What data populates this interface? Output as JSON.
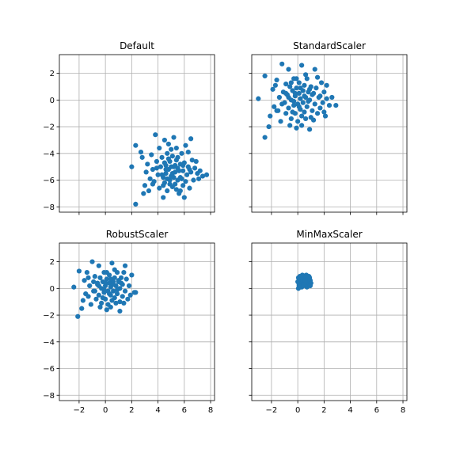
{
  "chart_data": [
    {
      "type": "scatter",
      "title": "Default",
      "xlabel": "",
      "ylabel": "",
      "xlim": [
        -3.5,
        8.3
      ],
      "ylim": [
        -8.4,
        3.4
      ],
      "xticks": [
        -2,
        0,
        2,
        4,
        6,
        8
      ],
      "yticks": [
        -8,
        -6,
        -4,
        -2,
        0,
        2
      ],
      "show_xticklabels": false,
      "show_yticklabels": true,
      "grid": true,
      "marker_color": "#1f77b4",
      "points": [
        [
          2.3,
          -7.8
        ],
        [
          2.0,
          -5.0
        ],
        [
          2.3,
          -3.4
        ],
        [
          2.7,
          -3.9
        ],
        [
          2.8,
          -4.3
        ],
        [
          2.9,
          -7.0
        ],
        [
          3.0,
          -6.4
        ],
        [
          3.1,
          -5.4
        ],
        [
          3.2,
          -4.8
        ],
        [
          3.3,
          -6.8
        ],
        [
          3.4,
          -5.9
        ],
        [
          3.5,
          -4.1
        ],
        [
          3.6,
          -5.2
        ],
        [
          3.7,
          -6.1
        ],
        [
          3.8,
          -2.6
        ],
        [
          3.9,
          -4.6
        ],
        [
          4.0,
          -5.6
        ],
        [
          4.1,
          -6.6
        ],
        [
          4.1,
          -3.6
        ],
        [
          4.2,
          -5.0
        ],
        [
          4.3,
          -4.3
        ],
        [
          4.4,
          -7.3
        ],
        [
          4.4,
          -5.8
        ],
        [
          4.5,
          -6.2
        ],
        [
          4.5,
          -3.0
        ],
        [
          4.6,
          -4.9
        ],
        [
          4.6,
          -5.5
        ],
        [
          4.7,
          -6.8
        ],
        [
          4.7,
          -4.0
        ],
        [
          4.8,
          -3.3
        ],
        [
          4.8,
          -5.2
        ],
        [
          4.9,
          -6.0
        ],
        [
          4.9,
          -4.6
        ],
        [
          5.0,
          -3.7
        ],
        [
          5.0,
          -5.7
        ],
        [
          5.1,
          -6.5
        ],
        [
          5.1,
          -4.2
        ],
        [
          5.2,
          -5.0
        ],
        [
          5.2,
          -2.8
        ],
        [
          5.3,
          -6.3
        ],
        [
          5.3,
          -5.4
        ],
        [
          5.4,
          -4.5
        ],
        [
          5.4,
          -3.6
        ],
        [
          5.5,
          -6.0
        ],
        [
          5.5,
          -5.1
        ],
        [
          5.6,
          -7.0
        ],
        [
          5.7,
          -4.8
        ],
        [
          5.7,
          -5.8
        ],
        [
          5.8,
          -4.0
        ],
        [
          5.9,
          -6.4
        ],
        [
          5.9,
          -5.3
        ],
        [
          6.0,
          -7.3
        ],
        [
          6.0,
          -4.7
        ],
        [
          6.1,
          -6.1
        ],
        [
          6.1,
          -3.4
        ],
        [
          6.2,
          -5.6
        ],
        [
          6.3,
          -5.0
        ],
        [
          6.3,
          -3.9
        ],
        [
          6.4,
          -6.6
        ],
        [
          6.5,
          -2.9
        ],
        [
          6.5,
          -5.4
        ],
        [
          6.6,
          -4.5
        ],
        [
          6.7,
          -6.0
        ],
        [
          6.8,
          -5.1
        ],
        [
          6.9,
          -4.6
        ],
        [
          7.0,
          -5.5
        ],
        [
          7.1,
          -5.9
        ],
        [
          7.2,
          -5.3
        ],
        [
          7.4,
          -5.7
        ],
        [
          7.7,
          -5.6
        ],
        [
          4.3,
          -5.6
        ],
        [
          4.6,
          -5.2
        ],
        [
          5.0,
          -5.0
        ],
        [
          5.2,
          -5.8
        ],
        [
          4.8,
          -4.4
        ],
        [
          5.6,
          -5.3
        ],
        [
          4.9,
          -6.3
        ],
        [
          5.8,
          -5.9
        ],
        [
          5.4,
          -6.7
        ],
        [
          4.5,
          -4.7
        ],
        [
          5.1,
          -5.5
        ],
        [
          5.3,
          -4.9
        ],
        [
          4.7,
          -5.9
        ],
        [
          5.5,
          -4.3
        ],
        [
          4.4,
          -6.4
        ],
        [
          5.9,
          -4.9
        ],
        [
          3.6,
          -6.3
        ],
        [
          6.4,
          -5.2
        ],
        [
          3.9,
          -5.1
        ],
        [
          5.7,
          -6.8
        ]
      ]
    },
    {
      "type": "scatter",
      "title": "StandardScaler",
      "xlabel": "",
      "ylabel": "",
      "xlim": [
        -3.5,
        8.3
      ],
      "ylim": [
        -8.4,
        3.4
      ],
      "xticks": [
        -2,
        0,
        2,
        4,
        6,
        8
      ],
      "yticks": [
        -8,
        -6,
        -4,
        -2,
        0,
        2
      ],
      "show_xticklabels": false,
      "show_yticklabels": false,
      "grid": true,
      "marker_color": "#1f77b4",
      "points": [
        [
          -3.0,
          0.1
        ],
        [
          -2.5,
          -2.8
        ],
        [
          -2.5,
          1.8
        ],
        [
          -2.2,
          -2.0
        ],
        [
          -2.1,
          -1.2
        ],
        [
          -1.9,
          0.8
        ],
        [
          -1.8,
          -0.5
        ],
        [
          -1.6,
          1.5
        ],
        [
          -1.5,
          -0.8
        ],
        [
          -1.4,
          0.2
        ],
        [
          -1.3,
          -1.6
        ],
        [
          -1.2,
          2.7
        ],
        [
          -1.1,
          0.6
        ],
        [
          -1.0,
          -0.2
        ],
        [
          -0.9,
          1.2
        ],
        [
          -0.9,
          -1.0
        ],
        [
          -0.8,
          0.4
        ],
        [
          -0.7,
          2.3
        ],
        [
          -0.7,
          -0.6
        ],
        [
          -0.6,
          1.0
        ],
        [
          -0.5,
          -1.4
        ],
        [
          -0.5,
          0.0
        ],
        [
          -0.4,
          0.7
        ],
        [
          -0.3,
          -0.4
        ],
        [
          -0.3,
          1.6
        ],
        [
          -0.2,
          -1.0
        ],
        [
          -0.2,
          0.3
        ],
        [
          -0.1,
          -2.1
        ],
        [
          -0.1,
          0.9
        ],
        [
          0.0,
          -0.3
        ],
        [
          0.0,
          -1.6
        ],
        [
          0.1,
          0.5
        ],
        [
          0.1,
          1.3
        ],
        [
          0.2,
          -0.7
        ],
        [
          0.2,
          0.1
        ],
        [
          0.3,
          -1.2
        ],
        [
          0.3,
          2.6
        ],
        [
          0.4,
          0.7
        ],
        [
          0.4,
          -0.2
        ],
        [
          0.5,
          1.1
        ],
        [
          0.5,
          -0.9
        ],
        [
          0.6,
          0.2
        ],
        [
          0.6,
          -1.4
        ],
        [
          0.7,
          1.6
        ],
        [
          0.7,
          -0.5
        ],
        [
          0.8,
          0.6
        ],
        [
          0.9,
          -2.2
        ],
        [
          0.9,
          0.0
        ],
        [
          1.0,
          1.0
        ],
        [
          1.1,
          -0.8
        ],
        [
          1.1,
          0.4
        ],
        [
          1.2,
          -1.5
        ],
        [
          1.3,
          2.3
        ],
        [
          1.3,
          -0.3
        ],
        [
          1.4,
          0.9
        ],
        [
          1.5,
          -1.0
        ],
        [
          1.6,
          0.2
        ],
        [
          1.7,
          -0.6
        ],
        [
          1.8,
          1.3
        ],
        [
          1.9,
          -0.2
        ],
        [
          2.0,
          0.6
        ],
        [
          2.1,
          -1.2
        ],
        [
          2.2,
          0.1
        ],
        [
          2.4,
          -0.4
        ],
        [
          2.6,
          0.2
        ],
        [
          2.9,
          -0.4
        ],
        [
          -0.6,
          -1.9
        ],
        [
          1.5,
          1.7
        ],
        [
          -1.7,
          1.1
        ],
        [
          2.2,
          1.1
        ],
        [
          0.2,
          0.9
        ],
        [
          -0.3,
          -0.1
        ],
        [
          0.5,
          0.3
        ],
        [
          0.1,
          -0.5
        ],
        [
          -0.7,
          0.2
        ],
        [
          0.8,
          -0.1
        ],
        [
          -0.1,
          1.6
        ],
        [
          1.0,
          -1.3
        ],
        [
          -1.2,
          -0.3
        ],
        [
          0.6,
          1.9
        ],
        [
          -0.4,
          -0.9
        ],
        [
          1.2,
          0.5
        ],
        [
          -0.9,
          0.5
        ],
        [
          0.3,
          -1.9
        ],
        [
          -0.2,
          0.5
        ],
        [
          0.9,
          0.8
        ],
        [
          1.7,
          0.3
        ],
        [
          -1.6,
          -0.8
        ],
        [
          2.0,
          -0.9
        ],
        [
          -0.5,
          1.3
        ]
      ]
    },
    {
      "type": "scatter",
      "title": "RobustScaler",
      "xlabel": "",
      "ylabel": "",
      "xlim": [
        -3.5,
        8.3
      ],
      "ylim": [
        -8.4,
        3.4
      ],
      "xticks": [
        -2,
        0,
        2,
        4,
        6,
        8
      ],
      "yticks": [
        -8,
        -6,
        -4,
        -2,
        0,
        2
      ],
      "show_xticklabels": true,
      "show_yticklabels": true,
      "grid": true,
      "marker_color": "#1f77b4",
      "points": [
        [
          -2.4,
          0.1
        ],
        [
          -2.1,
          -2.1
        ],
        [
          -2.0,
          1.3
        ],
        [
          -1.8,
          -1.5
        ],
        [
          -1.7,
          -0.9
        ],
        [
          -1.6,
          0.6
        ],
        [
          -1.5,
          -0.4
        ],
        [
          -1.4,
          1.2
        ],
        [
          -1.3,
          -0.6
        ],
        [
          -1.2,
          0.2
        ],
        [
          -1.1,
          -1.2
        ],
        [
          -1.0,
          2.0
        ],
        [
          -0.9,
          0.5
        ],
        [
          -0.8,
          -0.2
        ],
        [
          -0.8,
          0.9
        ],
        [
          -0.7,
          -0.8
        ],
        [
          -0.6,
          0.3
        ],
        [
          -0.5,
          1.7
        ],
        [
          -0.5,
          -0.5
        ],
        [
          -0.4,
          0.8
        ],
        [
          -0.3,
          -1.1
        ],
        [
          -0.3,
          0.0
        ],
        [
          -0.2,
          0.5
        ],
        [
          -0.1,
          -0.3
        ],
        [
          -0.1,
          1.2
        ],
        [
          0.0,
          -0.8
        ],
        [
          0.0,
          0.2
        ],
        [
          0.1,
          -1.6
        ],
        [
          0.1,
          0.7
        ],
        [
          0.2,
          -0.2
        ],
        [
          0.2,
          -1.2
        ],
        [
          0.3,
          0.4
        ],
        [
          0.3,
          1.0
        ],
        [
          0.4,
          -0.5
        ],
        [
          0.4,
          0.1
        ],
        [
          0.5,
          -0.9
        ],
        [
          0.5,
          1.9
        ],
        [
          0.6,
          0.5
        ],
        [
          0.6,
          -0.2
        ],
        [
          0.7,
          0.8
        ],
        [
          0.7,
          -0.7
        ],
        [
          0.8,
          0.2
        ],
        [
          0.8,
          -1.1
        ],
        [
          0.9,
          1.2
        ],
        [
          0.9,
          -0.4
        ],
        [
          1.0,
          0.5
        ],
        [
          1.1,
          -1.7
        ],
        [
          1.1,
          0.0
        ],
        [
          1.2,
          0.8
        ],
        [
          1.3,
          -0.6
        ],
        [
          1.3,
          0.3
        ],
        [
          1.4,
          -1.1
        ],
        [
          1.5,
          1.7
        ],
        [
          1.5,
          -0.2
        ],
        [
          1.6,
          0.7
        ],
        [
          1.7,
          -0.8
        ],
        [
          1.8,
          0.2
        ],
        [
          1.9,
          -0.5
        ],
        [
          2.0,
          1.0
        ],
        [
          2.2,
          -0.3
        ],
        [
          2.3,
          -0.3
        ],
        [
          -0.4,
          -1.4
        ],
        [
          1.4,
          1.2
        ],
        [
          -1.3,
          0.8
        ],
        [
          0.4,
          0.7
        ],
        [
          -0.1,
          -0.1
        ],
        [
          0.6,
          0.3
        ],
        [
          0.3,
          -0.4
        ],
        [
          -0.5,
          0.2
        ],
        [
          0.9,
          -0.1
        ],
        [
          0.1,
          1.2
        ],
        [
          1.1,
          -1.0
        ],
        [
          -0.9,
          -0.2
        ],
        [
          0.7,
          1.4
        ],
        [
          -0.2,
          -0.7
        ],
        [
          1.2,
          0.4
        ],
        [
          -0.6,
          0.4
        ],
        [
          0.4,
          -1.4
        ],
        [
          0.0,
          0.4
        ],
        [
          1.0,
          0.6
        ]
      ]
    },
    {
      "type": "scatter",
      "title": "MinMaxScaler",
      "xlabel": "",
      "ylabel": "",
      "xlim": [
        -3.5,
        8.3
      ],
      "ylim": [
        -8.4,
        3.4
      ],
      "xticks": [
        -2,
        0,
        2,
        4,
        6,
        8
      ],
      "yticks": [
        -8,
        -6,
        -4,
        -2,
        0,
        2
      ],
      "show_xticklabels": true,
      "show_yticklabels": false,
      "grid": true,
      "marker_color": "#1f77b4",
      "points": [
        [
          0.0,
          0.5
        ],
        [
          0.05,
          0.0
        ],
        [
          0.05,
          0.8
        ],
        [
          0.1,
          0.3
        ],
        [
          0.1,
          0.6
        ],
        [
          0.15,
          0.9
        ],
        [
          0.2,
          0.4
        ],
        [
          0.2,
          0.7
        ],
        [
          0.25,
          0.2
        ],
        [
          0.3,
          0.5
        ],
        [
          0.3,
          0.8
        ],
        [
          0.35,
          1.0
        ],
        [
          0.4,
          0.3
        ],
        [
          0.4,
          0.6
        ],
        [
          0.45,
          0.9
        ],
        [
          0.5,
          0.4
        ],
        [
          0.5,
          0.7
        ],
        [
          0.55,
          0.2
        ],
        [
          0.6,
          0.5
        ],
        [
          0.6,
          0.8
        ],
        [
          0.65,
          1.0
        ],
        [
          0.7,
          0.3
        ],
        [
          0.7,
          0.6
        ],
        [
          0.75,
          0.9
        ],
        [
          0.8,
          0.4
        ],
        [
          0.8,
          0.7
        ],
        [
          0.85,
          0.3
        ],
        [
          0.9,
          0.5
        ],
        [
          0.9,
          0.8
        ],
        [
          0.95,
          0.6
        ],
        [
          1.0,
          0.4
        ],
        [
          0.5,
          0.5
        ],
        [
          0.3,
          0.1
        ],
        [
          0.7,
          0.1
        ],
        [
          0.45,
          0.3
        ],
        [
          0.55,
          0.6
        ],
        [
          0.2,
          0.9
        ],
        [
          0.85,
          0.9
        ],
        [
          0.1,
          0.2
        ],
        [
          0.95,
          0.2
        ]
      ]
    }
  ]
}
